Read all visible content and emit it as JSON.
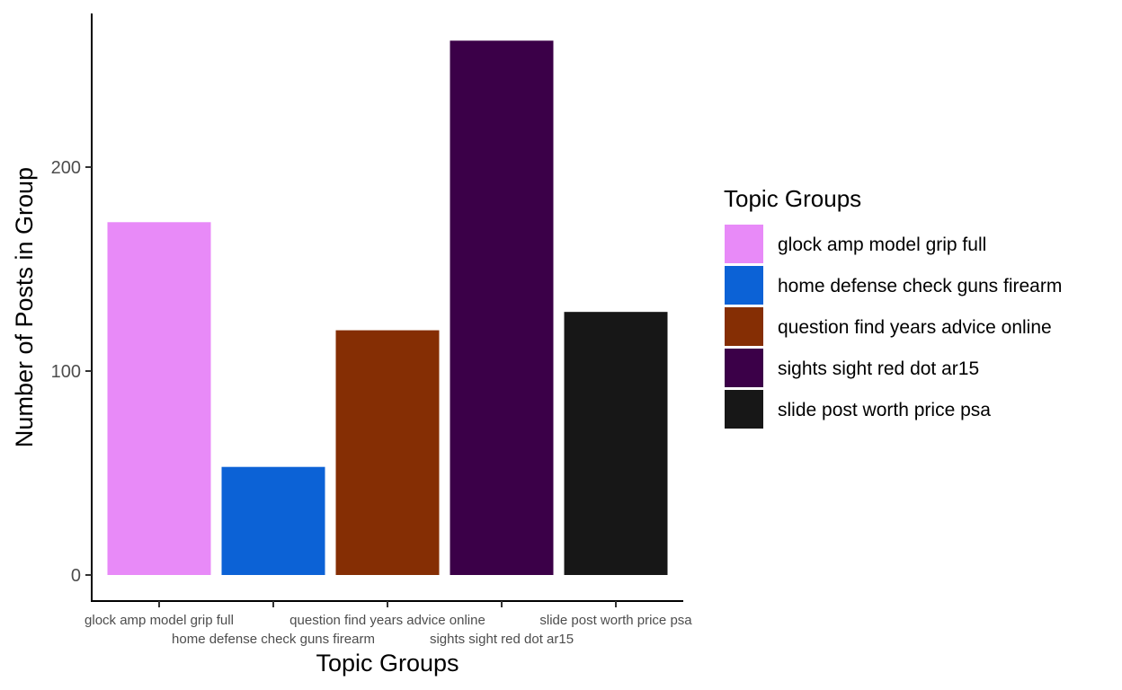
{
  "chart_data": {
    "type": "bar",
    "categories": [
      "glock amp model grip full",
      "home defense check guns firearm",
      "question find years advice online",
      "sights sight red dot ar15",
      "slide post worth price psa"
    ],
    "values": [
      173,
      53,
      120,
      262,
      129
    ],
    "colors": [
      "#E88AF8",
      "#0C62D6",
      "#852E04",
      "#3B0048",
      "#171717"
    ],
    "xlabel": "Topic Groups",
    "ylabel": "Number of Posts in Group",
    "ylim": [
      0,
      275
    ],
    "yticks": [
      0,
      100,
      200
    ],
    "ytick_labels": [
      "0",
      "100",
      "200"
    ],
    "grid": false,
    "legend": {
      "title": "Topic Groups",
      "placement": "right",
      "entries": [
        "glock amp model grip full",
        "home defense check guns firearm",
        "question find years advice online",
        "sights sight red dot ar15",
        "slide post worth price psa"
      ]
    }
  }
}
